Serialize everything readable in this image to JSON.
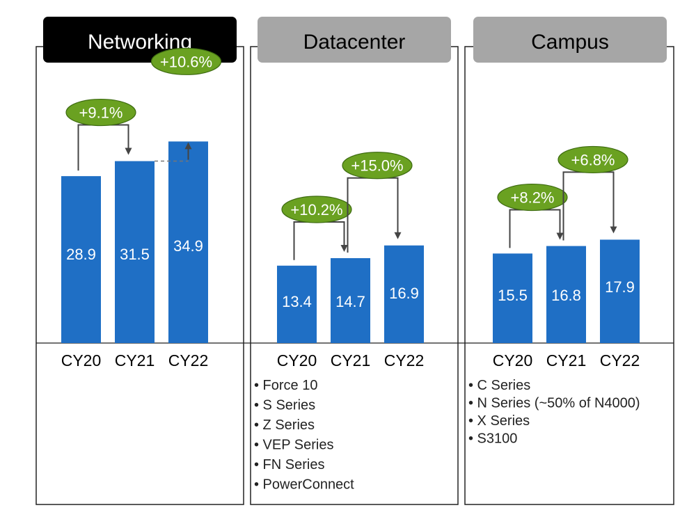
{
  "chart_data": [
    {
      "type": "bar",
      "title": "Networking",
      "categories": [
        "CY20",
        "CY21",
        "CY22"
      ],
      "values": [
        28.9,
        31.5,
        34.9
      ],
      "growth": [
        "+9.1%",
        "+10.6%"
      ],
      "notes": [],
      "colors": {
        "bar": "#1f6fc5",
        "title_bg": "#000000",
        "title_text": "#ffffff",
        "badge": "#6aa121"
      }
    },
    {
      "type": "bar",
      "title": "Datacenter",
      "categories": [
        "CY20",
        "CY21",
        "CY22"
      ],
      "values": [
        13.4,
        14.7,
        16.9
      ],
      "growth": [
        "+10.2%",
        "+15.0%"
      ],
      "notes": [
        "Force 10",
        "S Series",
        "Z Series",
        "VEP Series",
        "FN Series",
        "PowerConnect"
      ],
      "colors": {
        "bar": "#1f6fc5",
        "title_bg": "#a6a6a6",
        "title_text": "#000000",
        "badge": "#6aa121"
      }
    },
    {
      "type": "bar",
      "title": "Campus",
      "categories": [
        "CY20",
        "CY21",
        "CY22"
      ],
      "values": [
        15.5,
        16.8,
        17.9
      ],
      "growth": [
        "+8.2%",
        "+6.8%"
      ],
      "notes": [
        "C Series",
        "N Series (~50% of N4000)",
        "X Series",
        "S3100"
      ],
      "colors": {
        "bar": "#1f6fc5",
        "title_bg": "#a6a6a6",
        "title_text": "#000000",
        "badge": "#6aa121"
      }
    }
  ]
}
